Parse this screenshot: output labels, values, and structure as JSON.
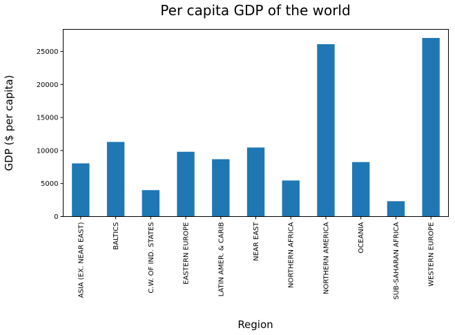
{
  "chart_data": {
    "type": "bar",
    "title": "Per capita GDP of the world",
    "xlabel": "Region",
    "ylabel": "GDP ($ per capita)",
    "categories": [
      "ASIA (EX. NEAR EAST)",
      "BALTICS",
      "C.W. OF IND. STATES",
      "EASTERN EUROPE",
      "LATIN AMER. & CARIB",
      "NEAR EAST",
      "NORTHERN AFRICA",
      "NORTHERN AMERICA",
      "OCEANIA",
      "SUB-SAHARAN AFRICA",
      "WESTERN EUROPE"
    ],
    "values": [
      8053,
      11300,
      4000,
      9809,
      8682,
      10456,
      5460,
      26100,
      8250,
      2323,
      27046
    ],
    "ylim": [
      0,
      28350
    ],
    "yticks": [
      0,
      5000,
      10000,
      15000,
      20000,
      25000
    ],
    "bar_color": "#1f77b4",
    "grid": false,
    "legend": "none"
  }
}
